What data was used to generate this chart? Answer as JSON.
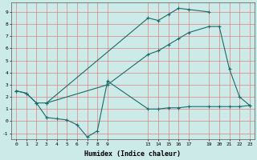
{
  "title": "",
  "xlabel": "Humidex (Indice chaleur)",
  "bg_color": "#cceae7",
  "line_color": "#1a6b6b",
  "grid_color": "#e08080",
  "xlim": [
    -0.5,
    23.5
  ],
  "ylim": [
    -1.5,
    9.8
  ],
  "xticks": [
    0,
    1,
    2,
    3,
    4,
    5,
    6,
    7,
    8,
    9,
    13,
    14,
    15,
    16,
    17,
    19,
    20,
    21,
    22,
    23
  ],
  "yticks": [
    -1,
    0,
    1,
    2,
    3,
    4,
    5,
    6,
    7,
    8,
    9
  ],
  "line1_x": [
    0,
    1,
    2,
    3,
    13,
    14,
    15,
    16,
    17,
    19
  ],
  "line1_y": [
    2.5,
    2.3,
    1.5,
    1.5,
    8.5,
    8.3,
    8.8,
    9.3,
    9.2,
    9.0
  ],
  "line2_x": [
    0,
    1,
    2,
    3,
    4,
    5,
    6,
    7,
    8,
    9,
    13,
    14,
    15,
    16,
    17,
    19,
    20,
    21,
    22,
    23
  ],
  "line2_y": [
    2.5,
    2.3,
    1.5,
    0.3,
    0.2,
    0.1,
    -0.3,
    -1.3,
    -0.8,
    3.3,
    1.0,
    1.0,
    1.1,
    1.1,
    1.2,
    1.2,
    1.2,
    1.2,
    1.2,
    1.3
  ],
  "line3_x": [
    3,
    9,
    13,
    14,
    15,
    16,
    17,
    19,
    20,
    21,
    22,
    23
  ],
  "line3_y": [
    1.5,
    3.0,
    5.5,
    5.8,
    6.3,
    6.8,
    7.3,
    7.8,
    7.8,
    4.3,
    2.0,
    1.3
  ]
}
